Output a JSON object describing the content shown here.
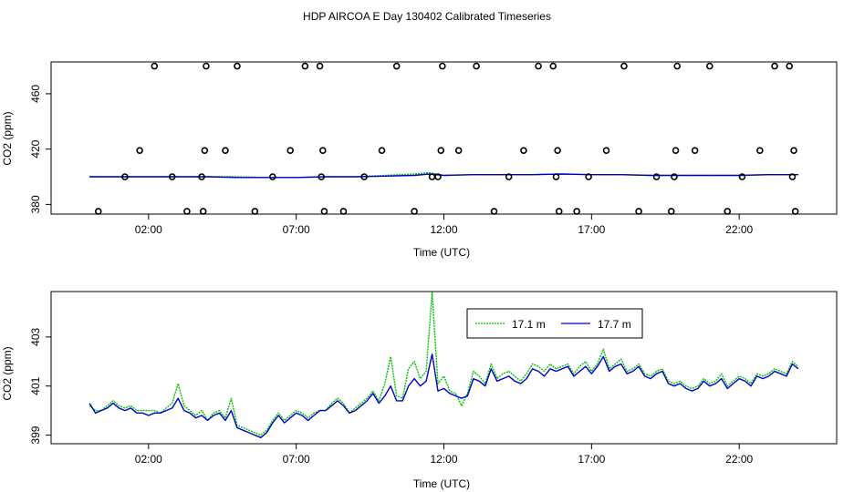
{
  "title": "HDP AIRCOA E  Day 130402  Calibrated Timeseries",
  "colors": {
    "green": "#00c000",
    "blue": "#0000c8",
    "points": "#000000"
  },
  "chart_data": [
    {
      "type": "line",
      "xlabel": "Time (UTC)",
      "ylabel": "CO2 (ppm)",
      "x_ticks": [
        2,
        7,
        12,
        17,
        22
      ],
      "x_tick_labels": [
        "02:00",
        "07:00",
        "12:00",
        "17:00",
        "22:00"
      ],
      "y_ticks": [
        380,
        420,
        460
      ],
      "y_tick_labels": [
        "380",
        "420",
        "460"
      ],
      "xlim": [
        -1.3,
        25.3
      ],
      "ylim": [
        373,
        483
      ],
      "series": [
        {
          "name": "17.1 m",
          "color": "#00c000",
          "x": [
            0.0,
            1.0,
            2.0,
            3.0,
            4.0,
            5.0,
            6.0,
            7.0,
            8.0,
            9.0,
            10.0,
            11.0,
            11.5,
            12.0,
            13.0,
            14.0,
            15.0,
            16.0,
            17.0,
            18.0,
            19.0,
            20.0,
            21.0,
            22.0,
            23.0,
            24.0
          ],
          "y": [
            400.0,
            400.0,
            400.0,
            400.0,
            400.0,
            400.0,
            399.5,
            399.5,
            400.0,
            400.0,
            401.0,
            402.0,
            403.0,
            401.0,
            401.5,
            401.5,
            401.5,
            402.0,
            401.5,
            401.5,
            401.0,
            401.0,
            401.0,
            401.0,
            401.5,
            401.5
          ]
        },
        {
          "name": "17.7 m",
          "color": "#0000c8",
          "x": [
            0.0,
            1.0,
            2.0,
            3.0,
            4.0,
            5.0,
            6.0,
            7.0,
            8.0,
            9.0,
            10.0,
            11.0,
            11.5,
            12.0,
            13.0,
            14.0,
            15.0,
            16.0,
            17.0,
            18.0,
            19.0,
            20.0,
            21.0,
            22.0,
            23.0,
            24.0
          ],
          "y": [
            400.0,
            400.0,
            400.0,
            400.0,
            400.0,
            399.5,
            399.5,
            399.5,
            400.0,
            400.0,
            400.5,
            401.0,
            402.0,
            401.0,
            401.5,
            401.5,
            401.5,
            402.0,
            401.5,
            401.5,
            401.0,
            401.0,
            401.0,
            401.0,
            401.5,
            401.5
          ]
        }
      ],
      "calibration_points": {
        "x": [
          0.3,
          1.2,
          1.7,
          2.2,
          2.8,
          3.3,
          3.8,
          3.85,
          3.9,
          3.95,
          4.6,
          5.0,
          5.6,
          6.2,
          6.8,
          7.3,
          7.8,
          7.85,
          7.9,
          7.95,
          8.6,
          9.3,
          9.9,
          10.4,
          11.0,
          11.6,
          11.8,
          11.9,
          11.95,
          12.5,
          13.1,
          13.7,
          14.2,
          14.7,
          15.2,
          15.7,
          15.8,
          15.85,
          15.9,
          16.5,
          16.9,
          17.5,
          18.1,
          18.6,
          19.2,
          19.7,
          19.8,
          19.85,
          19.9,
          20.5,
          21.0,
          21.6,
          22.1,
          22.7,
          23.2,
          23.7,
          23.8,
          23.85,
          23.9
        ],
        "y": [
          375,
          400,
          419,
          480,
          400,
          375,
          400,
          375,
          419,
          480,
          419,
          480,
          375,
          400,
          419,
          480,
          480,
          400,
          419,
          375,
          375,
          400,
          419,
          480,
          375,
          400,
          400,
          419,
          480,
          419,
          480,
          375,
          400,
          419,
          480,
          480,
          400,
          419,
          375,
          375,
          400,
          419,
          480,
          375,
          400,
          375,
          400,
          419,
          480,
          419,
          480,
          375,
          400,
          419,
          480,
          480,
          400,
          419,
          375
        ]
      }
    },
    {
      "type": "line",
      "xlabel": "Time (UTC)",
      "ylabel": "CO2 (ppm)",
      "x_ticks": [
        2,
        7,
        12,
        17,
        22
      ],
      "x_tick_labels": [
        "02:00",
        "07:00",
        "12:00",
        "17:00",
        "22:00"
      ],
      "y_ticks": [
        399,
        401,
        403
      ],
      "y_tick_labels": [
        "399",
        "401",
        "403"
      ],
      "xlim": [
        -1.3,
        25.3
      ],
      "ylim": [
        398.65,
        404.85
      ],
      "legend": "top-right",
      "series": [
        {
          "name": "17.1 m",
          "color": "#00c000",
          "x": [
            0.0,
            0.2,
            0.4,
            0.6,
            0.8,
            1.0,
            1.2,
            1.4,
            1.6,
            1.8,
            2.0,
            2.2,
            2.4,
            2.6,
            2.8,
            3.0,
            3.2,
            3.4,
            3.6,
            3.8,
            4.0,
            4.2,
            4.4,
            4.6,
            4.8,
            5.0,
            5.2,
            5.4,
            5.6,
            5.8,
            6.0,
            6.2,
            6.4,
            6.6,
            6.8,
            7.0,
            7.2,
            7.4,
            7.6,
            7.8,
            8.0,
            8.2,
            8.4,
            8.6,
            8.8,
            9.0,
            9.2,
            9.4,
            9.6,
            9.8,
            10.0,
            10.2,
            10.4,
            10.6,
            10.8,
            11.0,
            11.2,
            11.4,
            11.6,
            11.8,
            12.0,
            12.2,
            12.4,
            12.6,
            12.8,
            13.0,
            13.2,
            13.4,
            13.6,
            13.8,
            14.0,
            14.2,
            14.4,
            14.6,
            14.8,
            15.0,
            15.2,
            15.4,
            15.6,
            15.8,
            16.0,
            16.2,
            16.4,
            16.6,
            16.8,
            17.0,
            17.2,
            17.4,
            17.6,
            17.8,
            18.0,
            18.2,
            18.4,
            18.6,
            18.8,
            19.0,
            19.2,
            19.4,
            19.6,
            19.8,
            20.0,
            20.2,
            20.4,
            20.6,
            20.8,
            21.0,
            21.2,
            21.4,
            21.6,
            21.8,
            22.0,
            22.2,
            22.4,
            22.6,
            22.8,
            23.0,
            23.2,
            23.4,
            23.6,
            23.8,
            24.0
          ],
          "y": [
            400.2,
            400.0,
            400.0,
            400.2,
            400.4,
            400.2,
            400.1,
            400.2,
            400.0,
            400.0,
            400.0,
            400.0,
            399.9,
            400.1,
            400.3,
            401.1,
            400.2,
            400.0,
            399.8,
            400.0,
            399.6,
            399.9,
            400.0,
            399.7,
            400.5,
            399.4,
            399.3,
            399.2,
            399.1,
            399.0,
            399.2,
            399.6,
            399.9,
            399.6,
            399.8,
            400.0,
            399.9,
            399.7,
            399.9,
            400.0,
            400.0,
            400.3,
            400.5,
            400.3,
            399.9,
            400.1,
            400.3,
            400.5,
            400.8,
            400.4,
            401.1,
            402.2,
            400.6,
            400.5,
            401.7,
            402.0,
            401.3,
            401.6,
            404.8,
            401.1,
            401.4,
            400.8,
            400.7,
            400.2,
            400.7,
            401.6,
            401.4,
            401.1,
            401.9,
            401.3,
            401.5,
            401.6,
            401.4,
            401.2,
            401.5,
            401.9,
            401.8,
            401.6,
            401.9,
            401.7,
            401.8,
            401.9,
            401.5,
            401.8,
            402.0,
            401.6,
            401.9,
            402.5,
            401.7,
            401.9,
            402.1,
            401.6,
            401.7,
            401.9,
            401.5,
            401.4,
            401.6,
            401.7,
            401.2,
            401.1,
            401.2,
            401.0,
            400.9,
            401.0,
            401.3,
            401.1,
            401.2,
            401.5,
            401.0,
            401.2,
            401.4,
            401.3,
            401.1,
            401.5,
            401.4,
            401.5,
            401.7,
            401.6,
            401.5,
            402.0,
            401.8
          ]
        },
        {
          "name": "17.7 m",
          "color": "#0000c8",
          "x": [
            0.0,
            0.2,
            0.4,
            0.6,
            0.8,
            1.0,
            1.2,
            1.4,
            1.6,
            1.8,
            2.0,
            2.2,
            2.4,
            2.6,
            2.8,
            3.0,
            3.2,
            3.4,
            3.6,
            3.8,
            4.0,
            4.2,
            4.4,
            4.6,
            4.8,
            5.0,
            5.2,
            5.4,
            5.6,
            5.8,
            6.0,
            6.2,
            6.4,
            6.6,
            6.8,
            7.0,
            7.2,
            7.4,
            7.6,
            7.8,
            8.0,
            8.2,
            8.4,
            8.6,
            8.8,
            9.0,
            9.2,
            9.4,
            9.6,
            9.8,
            10.0,
            10.2,
            10.4,
            10.6,
            10.8,
            11.0,
            11.2,
            11.4,
            11.6,
            11.8,
            12.0,
            12.2,
            12.4,
            12.6,
            12.8,
            13.0,
            13.2,
            13.4,
            13.6,
            13.8,
            14.0,
            14.2,
            14.4,
            14.6,
            14.8,
            15.0,
            15.2,
            15.4,
            15.6,
            15.8,
            16.0,
            16.2,
            16.4,
            16.6,
            16.8,
            17.0,
            17.2,
            17.4,
            17.6,
            17.8,
            18.0,
            18.2,
            18.4,
            18.6,
            18.8,
            19.0,
            19.2,
            19.4,
            19.6,
            19.8,
            20.0,
            20.2,
            20.4,
            20.6,
            20.8,
            21.0,
            21.2,
            21.4,
            21.6,
            21.8,
            22.0,
            22.2,
            22.4,
            22.6,
            22.8,
            23.0,
            23.2,
            23.4,
            23.6,
            23.8,
            24.0
          ],
          "y": [
            400.3,
            399.9,
            400.0,
            400.1,
            400.3,
            400.1,
            400.0,
            400.1,
            399.9,
            399.9,
            399.8,
            399.9,
            399.9,
            400.0,
            400.1,
            400.5,
            400.0,
            399.9,
            399.7,
            399.8,
            399.6,
            399.8,
            399.9,
            399.6,
            400.0,
            399.3,
            399.2,
            399.1,
            399.0,
            398.9,
            399.1,
            399.5,
            399.8,
            399.5,
            399.7,
            399.9,
            399.8,
            399.6,
            399.8,
            400.0,
            400.0,
            400.2,
            400.4,
            400.2,
            399.9,
            400.0,
            400.2,
            400.4,
            400.7,
            400.3,
            400.6,
            401.0,
            400.4,
            400.4,
            401.0,
            401.3,
            401.0,
            401.2,
            402.3,
            400.8,
            400.9,
            400.7,
            400.6,
            400.5,
            400.6,
            401.3,
            401.2,
            401.0,
            401.7,
            401.2,
            401.3,
            401.4,
            401.2,
            401.1,
            401.3,
            401.7,
            401.6,
            401.4,
            401.7,
            401.6,
            401.7,
            401.8,
            401.4,
            401.6,
            401.8,
            401.5,
            401.8,
            402.2,
            401.6,
            401.8,
            401.9,
            401.5,
            401.6,
            401.8,
            401.4,
            401.3,
            401.5,
            401.6,
            401.1,
            401.0,
            401.1,
            400.9,
            400.8,
            400.9,
            401.2,
            401.0,
            401.1,
            401.3,
            400.9,
            401.1,
            401.3,
            401.2,
            401.0,
            401.4,
            401.3,
            401.4,
            401.6,
            401.5,
            401.4,
            401.9,
            401.7
          ]
        }
      ]
    }
  ]
}
